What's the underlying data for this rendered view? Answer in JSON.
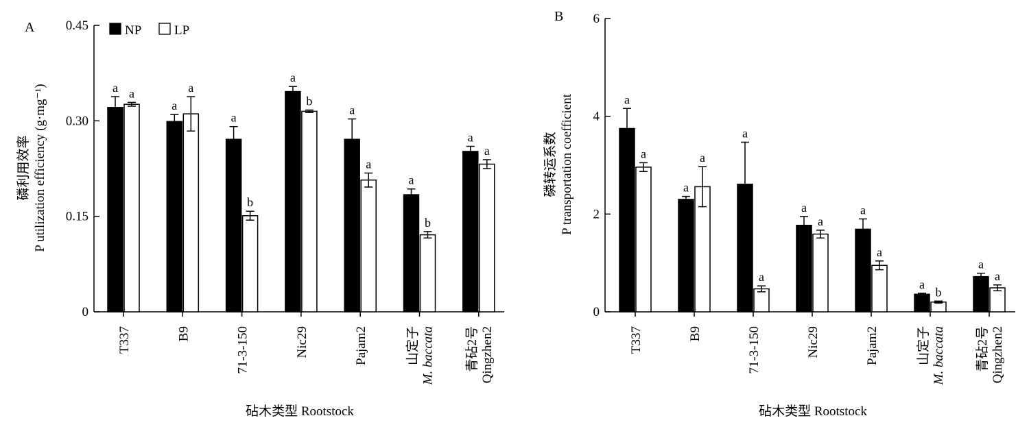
{
  "figure": {
    "panel_labels": [
      "A",
      "B"
    ]
  },
  "chart_data": [
    {
      "type": "bar",
      "panel": "A",
      "categories": [
        [
          "T337"
        ],
        [
          "B9"
        ],
        [
          "71-3-150"
        ],
        [
          "Nic29"
        ],
        [
          "Pajam2"
        ],
        [
          "山定子",
          "M. baccata"
        ],
        [
          "青砧2号",
          "Qingzhen2"
        ]
      ],
      "category_italic_lines": [
        [],
        [],
        [],
        [],
        [],
        [
          1
        ],
        []
      ],
      "series": [
        {
          "name": "NP",
          "color": "#000000",
          "values": [
            0.321,
            0.299,
            0.271,
            0.346,
            0.271,
            0.184,
            0.252
          ],
          "errors": [
            0.017,
            0.011,
            0.02,
            0.008,
            0.032,
            0.009,
            0.008
          ],
          "labels": [
            "a",
            "a",
            "a",
            "a",
            "a",
            "a",
            "a"
          ]
        },
        {
          "name": "LP",
          "color": "#ffffff",
          "values": [
            0.326,
            0.311,
            0.151,
            0.315,
            0.207,
            0.121,
            0.232
          ],
          "errors": [
            0.003,
            0.027,
            0.007,
            0.002,
            0.011,
            0.005,
            0.007
          ],
          "labels": [
            "a",
            "a",
            "b",
            "b",
            "a",
            "b",
            "a"
          ]
        }
      ],
      "ylabel_lines": [
        "磷利用效率",
        "P utilization efficiency (g·mg⁻¹)"
      ],
      "xlabel": "砧木类型 Rootstock",
      "ylim": [
        0,
        0.45
      ],
      "yticks": [
        "0",
        "0.15",
        "0.30",
        "0.45"
      ],
      "ytick_values": [
        0,
        0.15,
        0.3,
        0.45
      ],
      "legend": {
        "placement": "top-left",
        "entries": [
          "NP",
          "LP"
        ]
      },
      "grid": false
    },
    {
      "type": "bar",
      "panel": "B",
      "categories": [
        [
          "T337"
        ],
        [
          "B9"
        ],
        [
          "71-3-150"
        ],
        [
          "Nic29"
        ],
        [
          "Pajam2"
        ],
        [
          "山定子",
          "M. baccata"
        ],
        [
          "青砧2号",
          "Qingzhen2"
        ]
      ],
      "category_italic_lines": [
        [],
        [],
        [],
        [],
        [],
        [
          1
        ],
        []
      ],
      "series": [
        {
          "name": "NP",
          "color": "#000000",
          "values": [
            3.75,
            2.3,
            2.61,
            1.77,
            1.69,
            0.36,
            0.72
          ],
          "errors": [
            0.41,
            0.06,
            0.86,
            0.18,
            0.21,
            0.02,
            0.07
          ],
          "labels": [
            "a",
            "a",
            "a",
            "a",
            "a",
            "a",
            "a"
          ]
        },
        {
          "name": "LP",
          "color": "#ffffff",
          "values": [
            2.96,
            2.56,
            0.47,
            1.59,
            0.95,
            0.2,
            0.49
          ],
          "errors": [
            0.09,
            0.41,
            0.06,
            0.08,
            0.09,
            0.02,
            0.06
          ],
          "labels": [
            "a",
            "a",
            "a",
            "a",
            "a",
            "b",
            "a"
          ]
        }
      ],
      "ylabel_lines": [
        "磷转运系数",
        "P transportation coefficient"
      ],
      "xlabel": "砧木类型 Rootstock",
      "ylim": [
        0,
        6
      ],
      "yticks": [
        "0",
        "2",
        "4",
        "6"
      ],
      "ytick_values": [
        0,
        2,
        4,
        6
      ],
      "legend": null,
      "grid": false
    }
  ]
}
